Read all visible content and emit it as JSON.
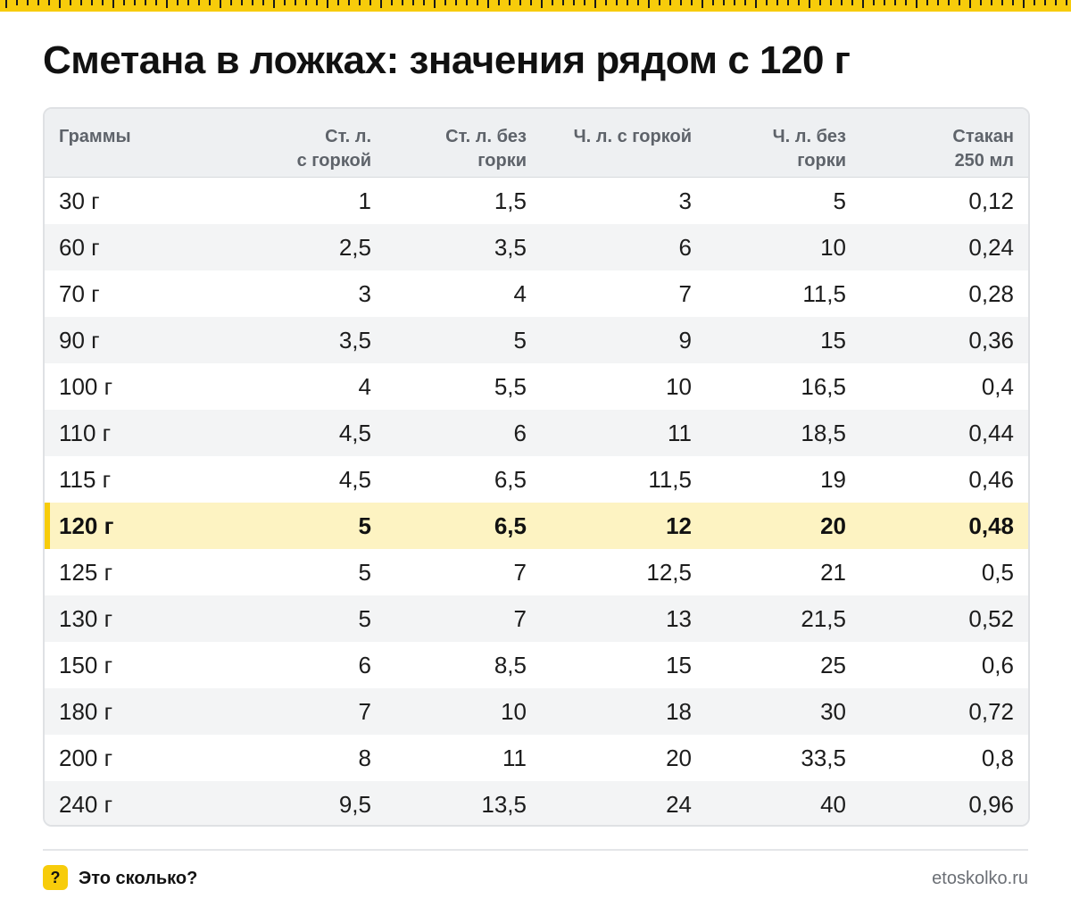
{
  "title": "Сметана в ложках: значения рядом с 120 г",
  "colors": {
    "accent": "#f7cc0b",
    "highlight_row": "#fdf3c2",
    "header_bg": "#eef0f2"
  },
  "table": {
    "headers": [
      "Граммы",
      "Ст. л.\nс горкой",
      "Ст. л. без\nгорки",
      "Ч. л. с горкой",
      "Ч. л. без\nгорки",
      "Стакан\n250 мл"
    ],
    "rows": [
      [
        "30 г",
        "1",
        "1,5",
        "3",
        "5",
        "0,12"
      ],
      [
        "60 г",
        "2,5",
        "3,5",
        "6",
        "10",
        "0,24"
      ],
      [
        "70 г",
        "3",
        "4",
        "7",
        "11,5",
        "0,28"
      ],
      [
        "90 г",
        "3,5",
        "5",
        "9",
        "15",
        "0,36"
      ],
      [
        "100 г",
        "4",
        "5,5",
        "10",
        "16,5",
        "0,4"
      ],
      [
        "110 г",
        "4,5",
        "6",
        "11",
        "18,5",
        "0,44"
      ],
      [
        "115 г",
        "4,5",
        "6,5",
        "11,5",
        "19",
        "0,46"
      ],
      [
        "120 г",
        "5",
        "6,5",
        "12",
        "20",
        "0,48"
      ],
      [
        "125 г",
        "5",
        "7",
        "12,5",
        "21",
        "0,5"
      ],
      [
        "130 г",
        "5",
        "7",
        "13",
        "21,5",
        "0,52"
      ],
      [
        "150 г",
        "6",
        "8,5",
        "15",
        "25",
        "0,6"
      ],
      [
        "180 г",
        "7",
        "10",
        "18",
        "30",
        "0,72"
      ],
      [
        "200 г",
        "8",
        "11",
        "20",
        "33,5",
        "0,8"
      ],
      [
        "240 г",
        "9,5",
        "13,5",
        "24",
        "40",
        "0,96"
      ]
    ],
    "highlighted_row": "120 г"
  },
  "footer": {
    "badge": "?",
    "brand": "Это сколько?",
    "site": "etoskolko.ru"
  }
}
